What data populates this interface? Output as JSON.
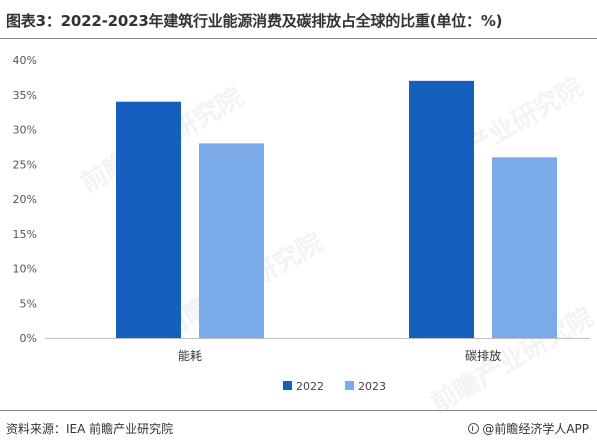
{
  "header": {
    "title": "图表3：2022-2023年建筑行业能源消费及碳排放占全球的比重(单位：%)"
  },
  "footer": {
    "source": "资料来源：IEA 前瞻产业研究院",
    "brand": "@前瞻经济学人APP",
    "brand_icon": "qianzhan-logo-icon"
  },
  "watermarks": [
    "前瞻产业研究院",
    "前瞻产业研究院",
    "前瞻产业研究院",
    "前瞻产业研究院"
  ],
  "chart_data": {
    "type": "bar",
    "title": "图表3：2022-2023年建筑行业能源消费及碳排放占全球的比重(单位：%)",
    "categories": [
      "能耗",
      "碳排放"
    ],
    "series": [
      {
        "name": "2022",
        "values": [
          34,
          37
        ],
        "color": "#1560bd"
      },
      {
        "name": "2023",
        "values": [
          28,
          26
        ],
        "color": "#7aaae8"
      }
    ],
    "ylim": [
      0,
      40
    ],
    "yticks": [
      "0%",
      "5%",
      "10%",
      "15%",
      "20%",
      "25%",
      "30%",
      "35%",
      "40%"
    ],
    "ytick_values": [
      0,
      5,
      10,
      15,
      20,
      25,
      30,
      35,
      40
    ],
    "xlabel": "",
    "ylabel": "",
    "grid": false,
    "legend": "bottom-center"
  }
}
